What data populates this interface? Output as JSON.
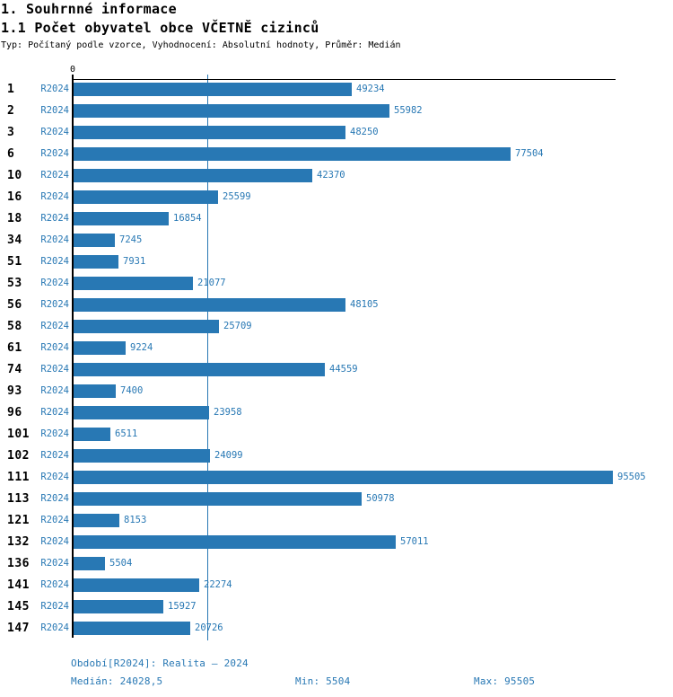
{
  "header": {
    "title": "1. Souhrnné informace",
    "subtitle": "1.1 Počet obyvatel obce VČETNĚ cizinců",
    "meta": "Typ: Počítaný podle vzorce, Vyhodnocení: Absolutní hodnoty, Průměr: Medián"
  },
  "chart_data": {
    "type": "bar",
    "orientation": "horizontal",
    "series_label": "R2024",
    "categories": [
      "1",
      "2",
      "3",
      "6",
      "10",
      "16",
      "18",
      "34",
      "51",
      "53",
      "56",
      "58",
      "61",
      "74",
      "93",
      "96",
      "101",
      "102",
      "111",
      "113",
      "121",
      "132",
      "136",
      "141",
      "145",
      "147"
    ],
    "values": [
      49234,
      55982,
      48250,
      77504,
      42370,
      25599,
      16854,
      7245,
      7931,
      21077,
      48105,
      25709,
      9224,
      44559,
      7400,
      23958,
      6511,
      24099,
      95505,
      50978,
      8153,
      57011,
      5504,
      22274,
      15927,
      20726
    ],
    "origin_label": "0",
    "median_value": 24028.5,
    "xlim": [
      0,
      96200
    ],
    "grid": "single vertical median line",
    "colors": {
      "bar": "#2878b4",
      "blue_text": "#2878b4",
      "axis": "#000000",
      "title_text": "#000000"
    }
  },
  "footer": {
    "period": "Období[R2024]: Realita – 2024",
    "median": "Medián: 24028,5",
    "min": "Min: 5504",
    "max": "Max: 95505"
  }
}
